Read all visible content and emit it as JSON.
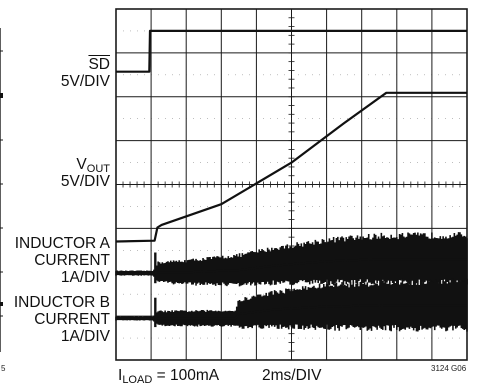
{
  "chart_data": {
    "type": "line",
    "title": "",
    "grid": true,
    "x_divisions": 10,
    "y_divisions": 8,
    "x_scale_text": "2ms/DIV",
    "load_condition": {
      "symbol": "I",
      "subscript": "LOAD",
      "value_text": "= 100mA"
    },
    "figure_id": "3124 G06",
    "cut_off_text": "5",
    "channels": [
      {
        "name_lines": [
          {
            "text": "SD",
            "overline": true
          },
          {
            "text": "5V/DIV"
          }
        ],
        "scale": "5V/DIV",
        "style": "step",
        "x_div": [
          0,
          0.95,
          0.97,
          10
        ],
        "y_div": [
          6.57,
          6.57,
          7.5,
          7.5
        ]
      },
      {
        "name_lines": [
          {
            "text": "V",
            "subscript": "OUT"
          },
          {
            "text": "5V/DIV"
          }
        ],
        "scale": "5V/DIV",
        "style": "line",
        "x_div": [
          0,
          1.1,
          1.18,
          1.3,
          3,
          5,
          6.5,
          7.7,
          10
        ],
        "y_div": [
          2.7,
          2.72,
          3.02,
          3.08,
          3.55,
          4.5,
          5.4,
          6.09,
          6.09
        ]
      },
      {
        "name_lines": [
          {
            "text": "INDUCTOR A"
          },
          {
            "text": "CURRENT"
          },
          {
            "text": "1A/DIV"
          }
        ],
        "scale": "1A/DIV",
        "style": "noise-band",
        "x_div": [
          0,
          1.05,
          1.2,
          2,
          3.5,
          4.5,
          6,
          7.5,
          10
        ],
        "center_div": [
          1.98,
          1.98,
          2.0,
          2.0,
          2.05,
          2.15,
          2.25,
          2.3,
          2.3
        ],
        "band_div": [
          0.06,
          0.06,
          0.25,
          0.3,
          0.38,
          0.45,
          0.55,
          0.6,
          0.62
        ],
        "spike": {
          "x_div": 1.12,
          "top_div": 2.45,
          "bottom_div": 1.75
        }
      },
      {
        "name_lines": [
          {
            "text": "INDUCTOR B"
          },
          {
            "text": "CURRENT"
          },
          {
            "text": "1A/DIV"
          }
        ],
        "scale": "1A/DIV",
        "style": "noise-band",
        "x_div": [
          0,
          1.05,
          1.2,
          3.4,
          3.5,
          4.5,
          6,
          8,
          10
        ],
        "center_div": [
          0.95,
          0.95,
          0.95,
          0.95,
          1.05,
          1.15,
          1.22,
          1.25,
          1.25
        ],
        "band_div": [
          0.05,
          0.05,
          0.18,
          0.2,
          0.35,
          0.45,
          0.55,
          0.6,
          0.62
        ],
        "spike": {
          "x_div": 1.12,
          "top_div": 1.42,
          "bottom_div": 0.75
        }
      }
    ],
    "colors": {
      "trace": "#111111",
      "grid_major": "#1a1a1a",
      "grid_minor": "#444444",
      "background": "#ffffff"
    }
  }
}
